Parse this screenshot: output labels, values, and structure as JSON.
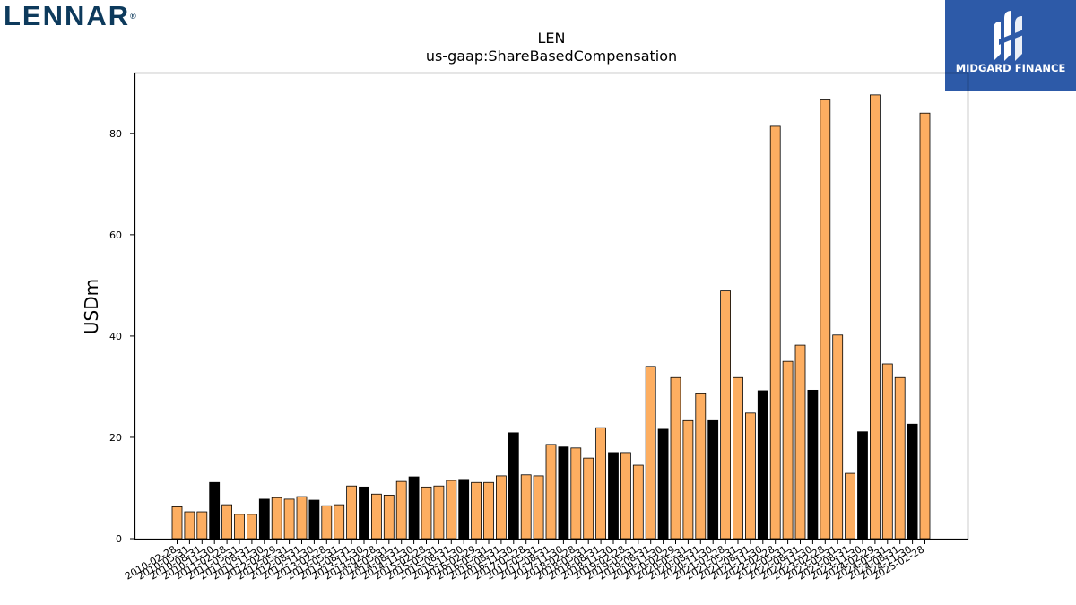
{
  "branding": {
    "company_logo_text": "LENNAR",
    "partner_logo_text": "MIDGARD FINANCE",
    "partner_logo_icon": "midgard-m-icon",
    "colors": {
      "company_navy": "#0d3a5c",
      "partner_blue": "#2d5aa8"
    }
  },
  "chart_data": {
    "type": "bar",
    "title": "LEN",
    "subtitle": "us-gaap:ShareBasedCompensation",
    "xlabel": "",
    "ylabel": "USDm",
    "ylim": [
      0,
      92
    ],
    "yticks": [
      0,
      20,
      40,
      60,
      80
    ],
    "grid": false,
    "legend": "none",
    "colors": {
      "quarter": "#fdae61",
      "fiscal_year_end": "#000000",
      "outline": "#000000"
    },
    "categories": [
      "2010-02-28",
      "2010-05-31",
      "2010-08-31",
      "2010-11-30",
      "2011-02-28",
      "2011-05-31",
      "2011-08-31",
      "2011-11-30",
      "2012-02-29",
      "2012-05-31",
      "2012-08-31",
      "2012-11-30",
      "2013-02-28",
      "2013-05-31",
      "2013-08-31",
      "2013-11-30",
      "2014-02-28",
      "2014-05-31",
      "2014-08-31",
      "2014-11-30",
      "2015-02-28",
      "2015-05-31",
      "2015-08-31",
      "2015-11-30",
      "2016-02-29",
      "2016-05-31",
      "2016-08-31",
      "2016-11-30",
      "2017-02-28",
      "2017-05-31",
      "2017-08-31",
      "2017-11-30",
      "2018-02-28",
      "2018-05-31",
      "2018-08-31",
      "2018-11-30",
      "2019-02-28",
      "2019-05-31",
      "2019-08-31",
      "2019-11-30",
      "2020-02-29",
      "2020-05-31",
      "2020-08-31",
      "2020-11-30",
      "2021-02-28",
      "2021-05-31",
      "2021-08-31",
      "2021-11-30",
      "2022-02-28",
      "2022-05-31",
      "2022-08-31",
      "2022-11-30",
      "2023-02-28",
      "2023-05-31",
      "2023-08-31",
      "2023-11-30",
      "2024-02-29",
      "2024-05-31",
      "2024-08-31",
      "2024-11-30",
      "2025-02-28"
    ],
    "values": [
      6.3,
      5.3,
      5.3,
      11.1,
      6.7,
      4.8,
      4.8,
      7.8,
      8.1,
      7.8,
      8.3,
      7.6,
      6.5,
      6.7,
      10.4,
      10.2,
      8.8,
      8.6,
      11.3,
      12.2,
      10.2,
      10.4,
      11.5,
      11.7,
      11.1,
      11.1,
      12.4,
      20.9,
      12.6,
      12.4,
      18.6,
      18.1,
      17.9,
      15.9,
      21.9,
      17.0,
      17.0,
      14.5,
      34.0,
      21.6,
      31.8,
      23.3,
      28.6,
      23.3,
      48.9,
      31.8,
      24.8,
      29.2,
      81.4,
      35.0,
      38.2,
      29.3,
      86.6,
      40.2,
      12.9,
      21.1,
      87.6,
      34.5,
      31.8,
      22.6,
      84.0
    ],
    "fiscal_year_end_flags": [
      0,
      0,
      0,
      1,
      0,
      0,
      0,
      1,
      0,
      0,
      0,
      1,
      0,
      0,
      0,
      1,
      0,
      0,
      0,
      1,
      0,
      0,
      0,
      1,
      0,
      0,
      0,
      1,
      0,
      0,
      0,
      1,
      0,
      0,
      0,
      1,
      0,
      0,
      0,
      1,
      0,
      0,
      0,
      1,
      0,
      0,
      0,
      1,
      0,
      0,
      0,
      1,
      0,
      0,
      0,
      1,
      0,
      0,
      0,
      1,
      0
    ]
  }
}
